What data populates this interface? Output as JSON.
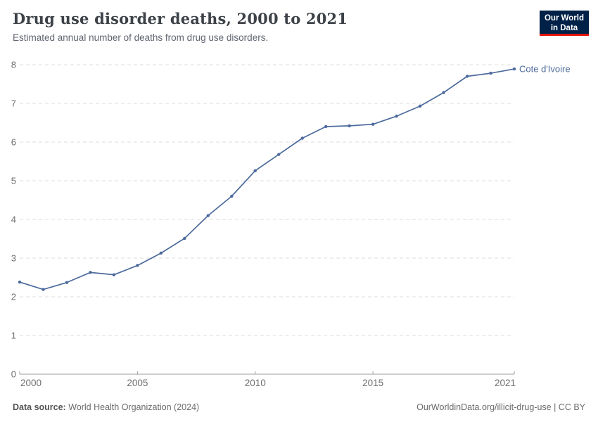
{
  "header": {
    "title": "Drug use disorder deaths, 2000 to 2021",
    "subtitle": "Estimated annual number of deaths from drug use disorders."
  },
  "logo": {
    "line1": "Our World",
    "line2": "in Data",
    "bg_color": "#002147",
    "accent_color": "#e3120b"
  },
  "footer": {
    "source_label": "Data source:",
    "source_text": " World Health Organization (2024)",
    "right_text": "OurWorldinData.org/illicit-drug-use | CC BY"
  },
  "chart_data": {
    "type": "line",
    "title": "Drug use disorder deaths, 2000 to 2021",
    "xlabel": "",
    "ylabel": "",
    "xlim": [
      2000,
      2021
    ],
    "ylim": [
      0,
      8
    ],
    "x_ticks": [
      2000,
      2005,
      2010,
      2015,
      2021
    ],
    "y_ticks": [
      0,
      1,
      2,
      3,
      4,
      5,
      6,
      7,
      8
    ],
    "grid": "dashed-horizontal",
    "legend_position": "end-of-line-label",
    "series": [
      {
        "name": "Cote d'Ivoire",
        "color": "#4C6A9C",
        "x": [
          2000,
          2001,
          2002,
          2003,
          2004,
          2005,
          2006,
          2007,
          2008,
          2009,
          2010,
          2011,
          2012,
          2013,
          2014,
          2015,
          2016,
          2017,
          2018,
          2019,
          2020,
          2021
        ],
        "values": [
          2.38,
          2.19,
          2.37,
          2.63,
          2.57,
          2.81,
          3.13,
          3.51,
          4.1,
          4.6,
          5.26,
          5.68,
          6.1,
          6.4,
          6.42,
          6.46,
          6.67,
          6.93,
          7.28,
          7.7,
          7.78,
          7.89
        ]
      }
    ]
  },
  "colors": {
    "axis": "#9e9e9e",
    "gridline": "#dcdcdc",
    "tick_label": "#6e6e6e",
    "series_label": "#4C6A9C"
  }
}
